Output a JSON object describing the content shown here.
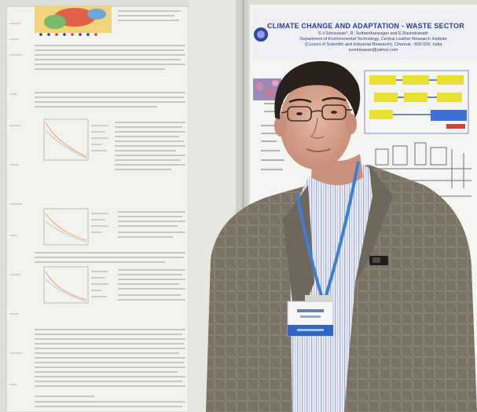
{
  "photo": {
    "subject": "man-in-tweed-jacket-with-lanyard-badge",
    "colors": {
      "wall": "#dcdcd8",
      "poster_paper": "#f3f3ef",
      "title_blue": "#2b3f9e",
      "jacket": "#7b7466",
      "shirt": "#e9ecf2",
      "lanyard": "#3d7fd1",
      "hair": "#2a211c",
      "skin": "#d7a690"
    }
  },
  "right_poster": {
    "title": "CLIMATE CHANGE AND ADAPTATION - WASTE SECTOR",
    "authors_lines": [
      "S.V.Srinivasan*, R. Suthanthararajan and E.Ravindranath",
      "Department of Environmental Technology, Central Leather Research Institute",
      "(Council of Scientific and Industrial Research), Chennai - 600 020, India",
      "svsrinivasan@yahoo.com"
    ]
  }
}
